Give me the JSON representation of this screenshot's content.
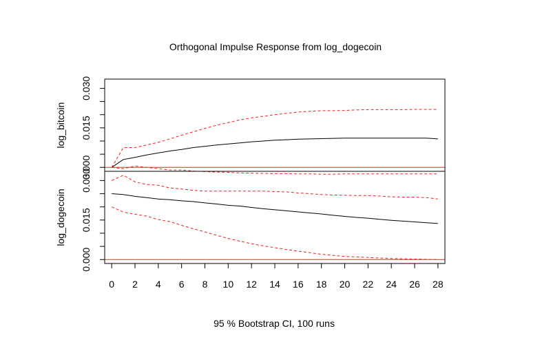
{
  "chart_data": {
    "type": "line",
    "title": "Orthogonal Impulse Response from log_dogecoin",
    "footer": "95 % Bootstrap CI,  100 runs",
    "x": [
      0,
      1,
      2,
      3,
      4,
      5,
      6,
      7,
      8,
      9,
      10,
      11,
      12,
      13,
      14,
      15,
      16,
      17,
      18,
      19,
      20,
      21,
      22,
      23,
      24,
      25,
      26,
      27,
      28
    ],
    "x_ticks": [
      0,
      2,
      4,
      6,
      8,
      10,
      12,
      14,
      16,
      18,
      20,
      22,
      24,
      26,
      28
    ],
    "xlim": [
      -0.6,
      28.6
    ],
    "colors": {
      "response": "#000000",
      "ci": "#e8231f",
      "zero_line": "#e8231f"
    },
    "panels": [
      {
        "ylabel": "log_bitcoin",
        "ylim": [
          -0.0015,
          0.0335
        ],
        "y_ticks": [
          0.0,
          0.005,
          0.01,
          0.015,
          0.02,
          0.025,
          0.03
        ],
        "y_tick_labels": [
          "0.000",
          "",
          "",
          "0.015",
          "",
          "",
          "0.030"
        ],
        "series": [
          {
            "name": "log_bitcoin response",
            "values": [
              0.0,
              0.003,
              0.0038,
              0.0047,
              0.0055,
              0.0062,
              0.0068,
              0.0075,
              0.008,
              0.0085,
              0.0089,
              0.0093,
              0.0097,
              0.01,
              0.0103,
              0.0105,
              0.0107,
              0.0108,
              0.0109,
              0.011,
              0.0111,
              0.0111,
              0.0111,
              0.0111,
              0.0111,
              0.0111,
              0.0111,
              0.0111,
              0.0108
            ]
          },
          {
            "name": "upper 95% CI",
            "values": [
              0.0,
              0.0075,
              0.0075,
              0.0085,
              0.0095,
              0.0108,
              0.0122,
              0.0135,
              0.0148,
              0.016,
              0.017,
              0.018,
              0.0188,
              0.0194,
              0.02,
              0.0205,
              0.021,
              0.0213,
              0.0215,
              0.0215,
              0.0216,
              0.0218,
              0.0219,
              0.0219,
              0.0219,
              0.0219,
              0.022,
              0.022,
              0.022
            ]
          },
          {
            "name": "lower 95% CI",
            "values": [
              0.0,
              -0.0005,
              0.0005,
              0.0,
              -0.0005,
              -0.001,
              -0.001,
              -0.0014,
              -0.0016,
              -0.0018,
              -0.0019,
              -0.0021,
              -0.0022,
              -0.0023,
              -0.0024,
              -0.0024,
              -0.0025,
              -0.0025,
              -0.0026,
              -0.0026,
              -0.0025,
              -0.0025,
              -0.0025,
              -0.0025,
              -0.0025,
              -0.0025,
              -0.0025,
              -0.0025,
              -0.0025
            ]
          }
        ]
      },
      {
        "ylabel": "log_dogecoin",
        "ylim": [
          -0.0015,
          0.0335
        ],
        "y_ticks": [
          0.0,
          0.005,
          0.01,
          0.015,
          0.02,
          0.025,
          0.03
        ],
        "y_tick_labels": [
          "0.000",
          "",
          "",
          "0.015",
          "",
          "",
          "0.030"
        ],
        "series": [
          {
            "name": "log_dogecoin response",
            "values": [
              0.025,
              0.0247,
              0.024,
              0.0235,
              0.023,
              0.0227,
              0.0223,
              0.022,
              0.0215,
              0.0211,
              0.0206,
              0.0203,
              0.0198,
              0.0193,
              0.0189,
              0.0185,
              0.0181,
              0.0177,
              0.0173,
              0.0168,
              0.0164,
              0.016,
              0.0157,
              0.0153,
              0.0149,
              0.0146,
              0.0143,
              0.014,
              0.0137
            ]
          },
          {
            "name": "upper 95% CI",
            "values": [
              0.03,
              0.032,
              0.0295,
              0.0285,
              0.0282,
              0.0272,
              0.0268,
              0.0263,
              0.026,
              0.026,
              0.026,
              0.026,
              0.026,
              0.026,
              0.0258,
              0.0257,
              0.0253,
              0.025,
              0.0247,
              0.0245,
              0.0244,
              0.0243,
              0.0243,
              0.0241,
              0.0238,
              0.0237,
              0.0237,
              0.0235,
              0.023
            ]
          },
          {
            "name": "lower 95% CI",
            "values": [
              0.02,
              0.018,
              0.0172,
              0.0165,
              0.0152,
              0.0144,
              0.013,
              0.0117,
              0.0105,
              0.0092,
              0.008,
              0.007,
              0.006,
              0.0052,
              0.0045,
              0.0038,
              0.0032,
              0.0026,
              0.002,
              0.0016,
              0.0012,
              0.001,
              0.0008,
              0.0006,
              0.0004,
              0.0003,
              0.0002,
              0.0001,
              0.0
            ]
          }
        ]
      }
    ]
  }
}
